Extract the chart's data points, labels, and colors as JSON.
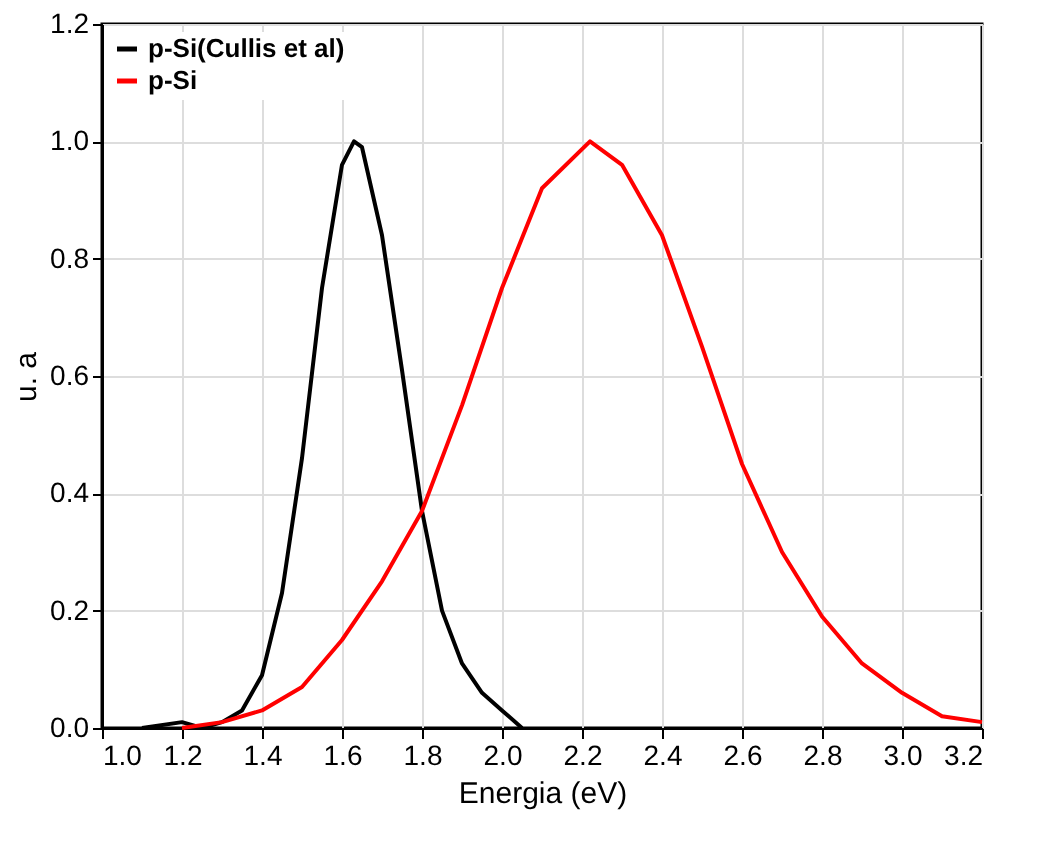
{
  "chart_data": {
    "type": "line",
    "xlabel": "Energia (eV)",
    "ylabel": "u. a",
    "xlim": [
      1.0,
      3.2
    ],
    "xticks": [
      {
        "value": 1.0,
        "label": "1.0"
      },
      1.2,
      1.4,
      1.6,
      1.8,
      {
        "value": 2.0,
        "label": "2.0"
      },
      2.2,
      2.4,
      2.6,
      2.8,
      {
        "value": 3.0,
        "label": "3.0"
      },
      3.2
    ],
    "ylim": [
      0,
      1.2
    ],
    "yticks": [
      {
        "value": 0,
        "label": "0.0"
      },
      0.2,
      0.4,
      0.6,
      0.8,
      {
        "value": 1,
        "label": "1.0"
      },
      1.2
    ],
    "grid": true,
    "legend": "top left",
    "marker": "none",
    "line_style": "solid",
    "series": [
      {
        "name": "p-Si(Cullis et al)",
        "color": "#000000",
        "x": [
          1.1,
          1.2,
          1.25,
          1.3,
          1.35,
          1.4,
          1.45,
          1.5,
          1.55,
          1.6,
          1.63,
          1.65,
          1.7,
          1.75,
          1.8,
          1.85,
          1.9,
          1.95,
          2.0,
          2.05
        ],
        "values": [
          0.0,
          0.01,
          0.0,
          0.01,
          0.03,
          0.09,
          0.23,
          0.46,
          0.75,
          0.96,
          1.0,
          0.99,
          0.84,
          0.61,
          0.37,
          0.2,
          0.11,
          0.06,
          0.03,
          0.0
        ]
      },
      {
        "name": "p-Si",
        "color": "#ff0000",
        "x": [
          1.2,
          1.3,
          1.4,
          1.5,
          1.6,
          1.7,
          1.8,
          1.9,
          2.0,
          2.1,
          2.22,
          2.3,
          2.4,
          2.5,
          2.6,
          2.7,
          2.8,
          2.9,
          3.0,
          3.1,
          3.2
        ],
        "values": [
          0.0,
          0.01,
          0.03,
          0.07,
          0.15,
          0.25,
          0.37,
          0.55,
          0.75,
          0.92,
          1.0,
          0.96,
          0.84,
          0.65,
          0.45,
          0.3,
          0.19,
          0.11,
          0.06,
          0.02,
          0.01
        ]
      }
    ]
  }
}
